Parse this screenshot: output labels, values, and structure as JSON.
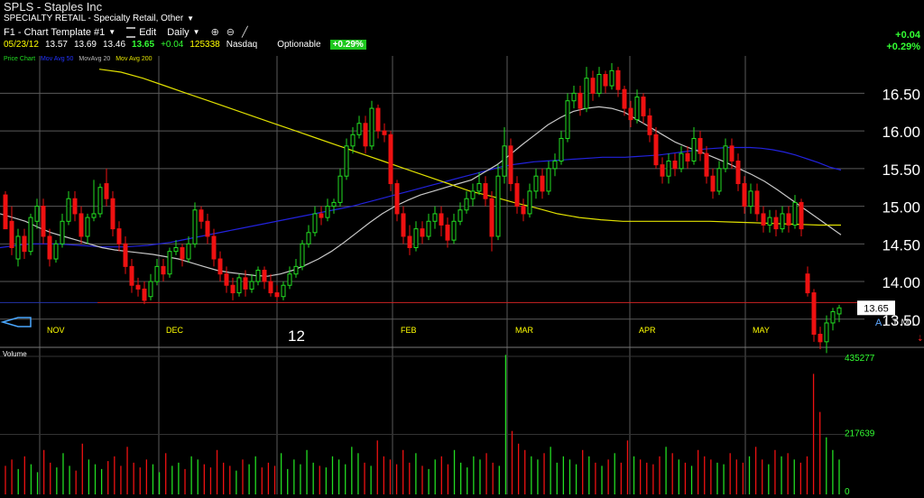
{
  "header": {
    "title": "SPLS - Staples Inc",
    "industry": "SPECIALTY RETAIL - Specialty Retail, Other",
    "toolbar": {
      "template": "F1 - Chart Template #1",
      "edit": "Edit",
      "period": "Daily"
    },
    "quote": {
      "date": "05/23/12",
      "open": "13.57",
      "high": "13.69",
      "low": "13.46",
      "close": "13.65",
      "change": "+0.04",
      "volume": "125338",
      "exchange": "Nasdaq",
      "optionable": "Optionable",
      "pct_change": "+0.29%"
    },
    "indicator_legend": {
      "price": "Price Chart",
      "ma50": "Mov Avg 50",
      "ma20": "MovAvg 20",
      "ma200": "Mov Avg 200"
    },
    "corner_change": "+0.04",
    "corner_pct": "+0.29%"
  },
  "colors": {
    "up": "#22dd22",
    "down": "#ee1111",
    "ma50": "#2222dd",
    "ma20": "#c8c8c8",
    "ma200": "#e0e000",
    "support": "#cc2222",
    "grid": "#5a5a5a"
  },
  "chart_data": [
    {
      "type": "candlestick",
      "yticks": [
        "16.50",
        "16.00",
        "15.50",
        "15.00",
        "14.50",
        "14.00",
        "13.50"
      ],
      "ylim": [
        13.15,
        16.9
      ],
      "months": [
        "NOV",
        "DEC",
        "12",
        "FEB",
        "MAR",
        "APR",
        "MAY"
      ],
      "last_price": "13.65",
      "support_level": 13.72,
      "axis_letters": [
        "A",
        "L",
        "T",
        "M",
        "L"
      ],
      "candles": [
        [
          15.15,
          14.7,
          14.9,
          15.2
        ],
        [
          14.8,
          14.45,
          15.0,
          14.35
        ],
        [
          14.3,
          14.6,
          14.7,
          14.2
        ],
        [
          14.6,
          14.4,
          14.7,
          14.3
        ],
        [
          14.4,
          14.85,
          14.9,
          14.35
        ],
        [
          14.8,
          15.0,
          15.1,
          14.7
        ],
        [
          15.0,
          14.6,
          15.1,
          14.5
        ],
        [
          14.6,
          14.3,
          14.7,
          14.2
        ],
        [
          14.3,
          14.5,
          14.55,
          14.25
        ],
        [
          14.5,
          14.8,
          14.9,
          14.45
        ],
        [
          14.8,
          15.1,
          15.2,
          14.75
        ],
        [
          15.1,
          14.9,
          15.2,
          14.8
        ],
        [
          14.9,
          14.6,
          15.0,
          14.5
        ],
        [
          14.6,
          14.85,
          14.9,
          14.5
        ],
        [
          14.85,
          14.9,
          15.35,
          14.8
        ],
        [
          14.9,
          15.25,
          15.3,
          14.85
        ],
        [
          15.3,
          15.1,
          15.5,
          15.0
        ],
        [
          15.1,
          14.7,
          15.2,
          14.6
        ],
        [
          14.7,
          14.5,
          14.8,
          14.4
        ],
        [
          14.5,
          14.2,
          14.6,
          14.1
        ],
        [
          14.2,
          13.95,
          14.3,
          13.85
        ],
        [
          13.95,
          13.9,
          14.05,
          13.8
        ],
        [
          13.9,
          13.75,
          14.0,
          13.7
        ],
        [
          13.8,
          14.0,
          14.1,
          13.75
        ],
        [
          14.0,
          14.2,
          14.3,
          13.95
        ],
        [
          14.2,
          14.1,
          14.3,
          14.0
        ],
        [
          14.1,
          14.4,
          14.45,
          14.05
        ],
        [
          14.4,
          14.45,
          14.55,
          14.35
        ],
        [
          14.45,
          14.3,
          14.5,
          14.2
        ],
        [
          14.3,
          14.5,
          14.6,
          14.25
        ],
        [
          14.5,
          14.95,
          15.05,
          14.45
        ],
        [
          14.95,
          14.8,
          15.0,
          14.7
        ],
        [
          14.8,
          14.6,
          14.9,
          14.5
        ],
        [
          14.6,
          14.3,
          14.7,
          14.2
        ],
        [
          14.3,
          14.1,
          14.4,
          14.0
        ],
        [
          14.1,
          13.95,
          14.2,
          13.85
        ],
        [
          13.95,
          13.85,
          14.05,
          13.75
        ],
        [
          13.85,
          14.05,
          14.1,
          13.8
        ],
        [
          14.05,
          13.9,
          14.15,
          13.8
        ],
        [
          13.9,
          14.0,
          14.1,
          13.85
        ],
        [
          14.0,
          14.15,
          14.2,
          13.95
        ],
        [
          14.15,
          14.0,
          14.2,
          13.9
        ],
        [
          14.0,
          13.85,
          14.1,
          13.8
        ],
        [
          13.85,
          13.8,
          13.95,
          13.75
        ],
        [
          13.8,
          13.95,
          14.0,
          13.75
        ],
        [
          13.95,
          14.1,
          14.2,
          13.9
        ],
        [
          14.1,
          14.2,
          14.3,
          14.05
        ],
        [
          14.2,
          14.5,
          14.55,
          14.15
        ],
        [
          14.5,
          14.65,
          14.75,
          14.45
        ],
        [
          14.65,
          14.9,
          15.0,
          14.6
        ],
        [
          14.9,
          14.85,
          15.0,
          14.75
        ],
        [
          14.85,
          15.0,
          15.1,
          14.8
        ],
        [
          15.0,
          15.05,
          15.1,
          14.9
        ],
        [
          15.05,
          15.4,
          15.5,
          15.0
        ],
        [
          15.4,
          15.8,
          15.9,
          15.35
        ],
        [
          15.8,
          15.95,
          16.05,
          15.7
        ],
        [
          15.95,
          16.1,
          16.2,
          15.9
        ],
        [
          16.1,
          15.8,
          16.2,
          15.7
        ],
        [
          15.8,
          16.3,
          16.4,
          15.75
        ],
        [
          16.3,
          16.0,
          16.35,
          15.9
        ],
        [
          16.0,
          15.95,
          16.1,
          15.85
        ],
        [
          15.95,
          15.3,
          16.0,
          15.2
        ],
        [
          15.3,
          14.9,
          15.35,
          14.8
        ],
        [
          14.9,
          14.6,
          15.0,
          14.5
        ],
        [
          14.6,
          14.45,
          14.75,
          14.35
        ],
        [
          14.45,
          14.7,
          14.8,
          14.4
        ],
        [
          14.7,
          14.6,
          14.8,
          14.5
        ],
        [
          14.6,
          14.8,
          14.9,
          14.55
        ],
        [
          14.8,
          14.9,
          15.0,
          14.7
        ],
        [
          14.9,
          14.75,
          15.0,
          14.6
        ],
        [
          14.75,
          14.55,
          14.85,
          14.45
        ],
        [
          14.55,
          14.8,
          14.9,
          14.5
        ],
        [
          14.8,
          14.95,
          15.05,
          14.75
        ],
        [
          14.95,
          15.1,
          15.2,
          14.9
        ],
        [
          15.1,
          15.2,
          15.3,
          15.0
        ],
        [
          15.2,
          15.3,
          15.45,
          15.15
        ],
        [
          15.3,
          15.1,
          15.4,
          15.0
        ],
        [
          15.1,
          14.6,
          15.2,
          14.4
        ],
        [
          14.6,
          15.4,
          15.55,
          14.55
        ],
        [
          15.4,
          15.8,
          16.05,
          15.3
        ],
        [
          15.8,
          15.3,
          15.9,
          15.2
        ],
        [
          15.3,
          15.0,
          15.4,
          14.9
        ],
        [
          15.0,
          14.9,
          15.1,
          14.8
        ],
        [
          14.9,
          15.2,
          15.3,
          14.85
        ],
        [
          15.2,
          15.4,
          15.5,
          15.1
        ],
        [
          15.4,
          15.2,
          15.5,
          15.1
        ],
        [
          15.2,
          15.5,
          15.6,
          15.15
        ],
        [
          15.5,
          15.6,
          15.7,
          15.4
        ],
        [
          15.6,
          15.9,
          16.0,
          15.55
        ],
        [
          15.9,
          16.4,
          16.5,
          15.85
        ],
        [
          16.4,
          16.5,
          16.6,
          16.3
        ],
        [
          16.5,
          16.3,
          16.6,
          16.2
        ],
        [
          16.3,
          16.7,
          16.85,
          16.25
        ],
        [
          16.7,
          16.5,
          16.8,
          16.4
        ],
        [
          16.5,
          16.75,
          16.85,
          16.45
        ],
        [
          16.75,
          16.6,
          16.8,
          16.5
        ],
        [
          16.6,
          16.8,
          16.9,
          16.55
        ],
        [
          16.8,
          16.55,
          16.85,
          16.45
        ],
        [
          16.55,
          16.3,
          16.6,
          16.2
        ],
        [
          16.3,
          16.15,
          16.4,
          16.05
        ],
        [
          16.15,
          16.45,
          16.55,
          16.1
        ],
        [
          16.45,
          16.2,
          16.5,
          16.1
        ],
        [
          16.2,
          15.95,
          16.3,
          15.85
        ],
        [
          15.95,
          15.55,
          16.05,
          15.5
        ],
        [
          15.55,
          15.4,
          15.65,
          15.3
        ],
        [
          15.4,
          15.6,
          15.7,
          15.3
        ],
        [
          15.6,
          15.5,
          15.7,
          15.4
        ],
        [
          15.5,
          15.7,
          15.8,
          15.45
        ],
        [
          15.7,
          15.6,
          15.8,
          15.5
        ],
        [
          15.6,
          15.9,
          16.05,
          15.55
        ],
        [
          15.9,
          15.7,
          16.0,
          15.6
        ],
        [
          15.7,
          15.4,
          15.8,
          15.3
        ],
        [
          15.4,
          15.2,
          15.5,
          15.1
        ],
        [
          15.2,
          15.5,
          15.6,
          15.15
        ],
        [
          15.5,
          15.8,
          15.9,
          15.45
        ],
        [
          15.8,
          15.6,
          15.9,
          15.5
        ],
        [
          15.6,
          15.3,
          15.7,
          15.2
        ],
        [
          15.3,
          15.0,
          15.4,
          14.9
        ],
        [
          15.0,
          15.2,
          15.3,
          14.9
        ],
        [
          15.2,
          14.9,
          15.3,
          14.8
        ],
        [
          14.9,
          14.75,
          15.0,
          14.65
        ],
        [
          14.75,
          14.85,
          14.95,
          14.65
        ],
        [
          14.85,
          14.7,
          14.95,
          14.6
        ],
        [
          14.7,
          14.9,
          15.0,
          14.65
        ],
        [
          14.9,
          14.75,
          15.0,
          14.65
        ],
        [
          14.75,
          15.05,
          15.15,
          14.7
        ],
        [
          15.05,
          14.7,
          15.1,
          14.6
        ],
        [
          14.1,
          13.85,
          14.2,
          13.8
        ],
        [
          13.85,
          13.3,
          13.9,
          13.2
        ],
        [
          13.3,
          13.2,
          13.4,
          13.1
        ],
        [
          13.2,
          13.45,
          13.55,
          13.05
        ],
        [
          13.45,
          13.6,
          13.65,
          13.35
        ],
        [
          13.57,
          13.65,
          13.69,
          13.46
        ]
      ],
      "ma50": [
        14.45,
        14.47,
        14.49,
        14.5,
        14.5,
        14.5,
        14.49,
        14.48,
        14.47,
        14.46,
        14.46,
        14.46,
        14.47,
        14.48,
        14.5,
        14.52,
        14.55,
        14.58,
        14.61,
        14.64,
        14.67,
        14.7,
        14.73,
        14.76,
        14.79,
        14.82,
        14.85,
        14.88,
        14.91,
        14.94,
        14.97,
        15.0,
        15.04,
        15.08,
        15.12,
        15.16,
        15.2,
        15.24,
        15.28,
        15.32,
        15.36,
        15.4,
        15.44,
        15.48,
        15.52,
        15.55,
        15.57,
        15.59,
        15.6,
        15.61,
        15.62,
        15.63,
        15.64,
        15.65,
        15.65,
        15.65,
        15.66,
        15.67,
        15.68,
        15.7,
        15.72,
        15.74,
        15.76,
        15.77,
        15.78,
        15.78,
        15.78,
        15.77,
        15.75,
        15.72,
        15.68,
        15.63,
        15.58,
        15.52,
        15.48
      ],
      "ma20": [
        14.9,
        14.85,
        14.8,
        14.72,
        14.65,
        14.6,
        14.55,
        14.5,
        14.45,
        14.42,
        14.4,
        14.38,
        14.36,
        14.33,
        14.3,
        14.25,
        14.2,
        14.15,
        14.12,
        14.1,
        14.08,
        14.07,
        14.1,
        14.15,
        14.22,
        14.3,
        14.4,
        14.52,
        14.65,
        14.78,
        14.9,
        15.0,
        15.08,
        15.15,
        15.2,
        15.25,
        15.3,
        15.35,
        15.45,
        15.55,
        15.68,
        15.82,
        15.95,
        16.08,
        16.18,
        16.26,
        16.3,
        16.32,
        16.3,
        16.25,
        16.15,
        16.05,
        15.95,
        15.85,
        15.78,
        15.72,
        15.65,
        15.58,
        15.5,
        15.42,
        15.33,
        15.22,
        15.1,
        14.98,
        14.86,
        14.74,
        14.62
      ],
      "ma200": [
        16.82,
        16.78,
        16.7,
        16.6,
        16.5,
        16.4,
        16.3,
        16.2,
        16.1,
        16.0,
        15.9,
        15.8,
        15.7,
        15.6,
        15.5,
        15.4,
        15.3,
        15.2,
        15.13,
        15.05,
        14.98,
        14.9,
        14.85,
        14.82,
        14.8,
        14.8,
        14.8,
        14.8,
        14.8,
        14.79,
        14.78,
        14.77,
        14.76,
        14.75,
        14.75
      ]
    },
    {
      "type": "bar",
      "name": "Volume",
      "yticks": [
        "435277",
        "217639",
        "0"
      ],
      "ylim": [
        0,
        435277
      ],
      "values": [
        90000,
        110000,
        80000,
        120000,
        95000,
        70000,
        140000,
        100000,
        85000,
        130000,
        90000,
        75000,
        160000,
        110000,
        95000,
        80000,
        105000,
        120000,
        90000,
        150000,
        100000,
        85000,
        110000,
        95000,
        70000,
        130000,
        90000,
        100000,
        80000,
        120000,
        110000,
        95000,
        85000,
        140000,
        100000,
        90000,
        75000,
        110000,
        95000,
        120000,
        85000,
        100000,
        90000,
        130000,
        80000,
        110000,
        95000,
        140000,
        100000,
        90000,
        85000,
        120000,
        110000,
        95000,
        150000,
        130000,
        100000,
        90000,
        170000,
        120000,
        110000,
        95000,
        140000,
        100000,
        130000,
        90000,
        80000,
        110000,
        120000,
        95000,
        140000,
        100000,
        85000,
        120000,
        110000,
        130000,
        100000,
        90000,
        440000,
        200000,
        160000,
        140000,
        120000,
        110000,
        130000,
        150000,
        100000,
        120000,
        110000,
        95000,
        140000,
        120000,
        100000,
        90000,
        110000,
        130000,
        100000,
        170000,
        120000,
        110000,
        100000,
        95000,
        120000,
        150000,
        130000,
        110000,
        100000,
        90000,
        140000,
        120000,
        110000,
        100000,
        95000,
        130000,
        110000,
        100000,
        120000,
        150000,
        110000,
        95000,
        140000,
        120000,
        130000,
        110000,
        100000,
        120000,
        380000,
        260000,
        180000,
        140000,
        110000
      ]
    }
  ]
}
